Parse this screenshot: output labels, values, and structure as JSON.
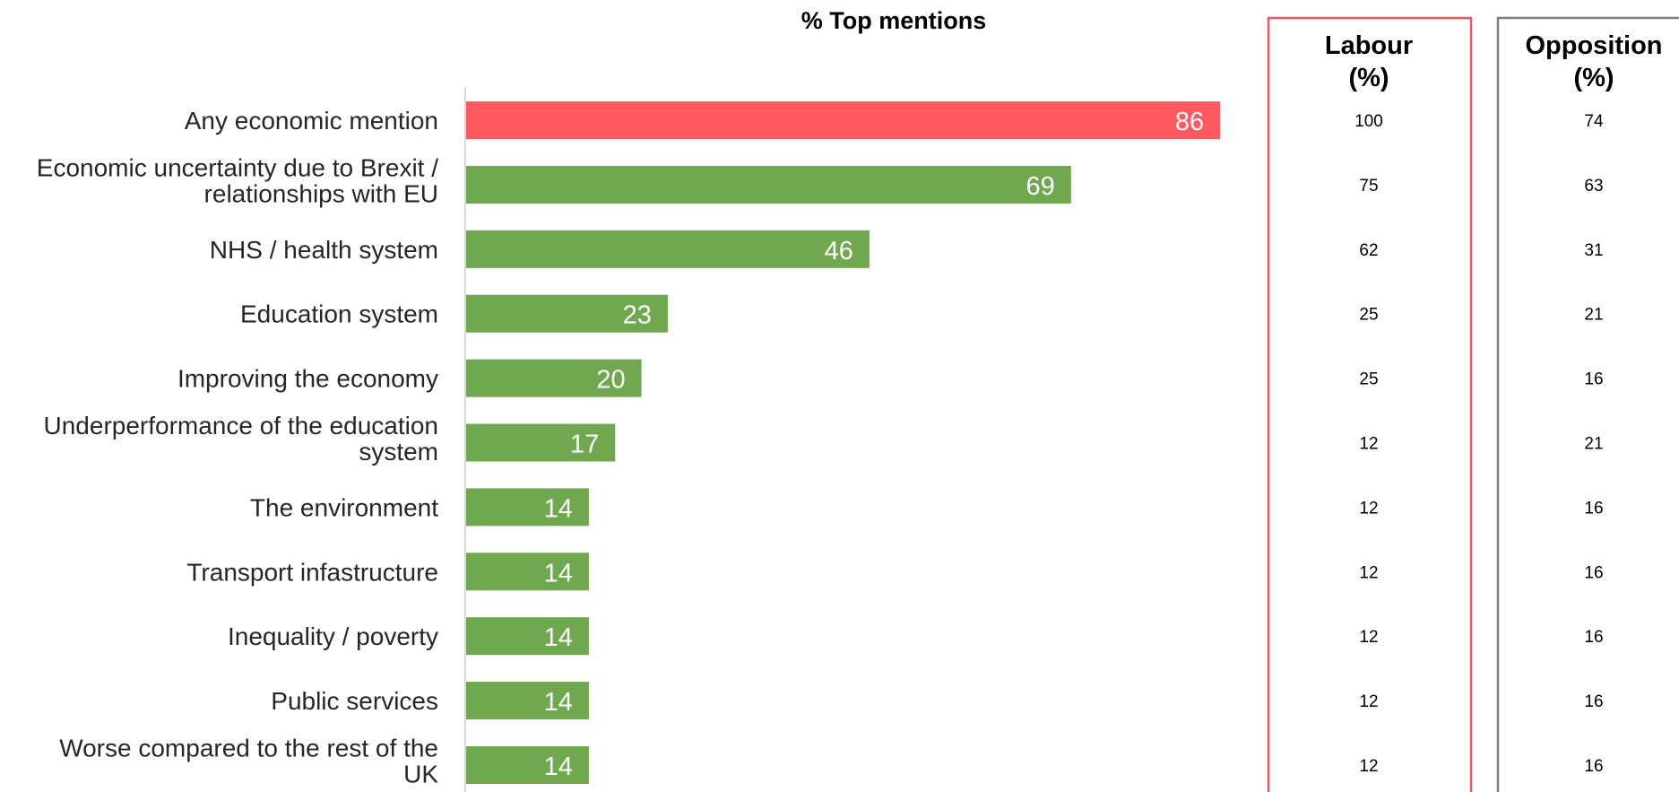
{
  "chart_data": {
    "type": "bar",
    "orientation": "horizontal",
    "title": "% Top mentions",
    "xlim": [
      0,
      100
    ],
    "categories": [
      "Any economic mention",
      "Economic uncertainty due to Brexit / relationships with EU",
      "NHS / health system",
      "Education system",
      "Improving the economy",
      "Underperformance of the education system",
      "The environment",
      "Transport infastructure",
      "Inequality / poverty",
      "Public services",
      "Worse compared to the rest of the UK"
    ],
    "category_lines": [
      [
        "Any economic mention"
      ],
      [
        "Economic uncertainty due to Brexit /",
        "relationships with EU"
      ],
      [
        "NHS / health system"
      ],
      [
        "Education system"
      ],
      [
        "Improving the economy"
      ],
      [
        "Underperformance of the education",
        "system"
      ],
      [
        "The environment"
      ],
      [
        "Transport infastructure"
      ],
      [
        "Inequality / poverty"
      ],
      [
        "Public services"
      ],
      [
        "Worse compared to the rest of the",
        "UK"
      ]
    ],
    "values": [
      86,
      69,
      46,
      23,
      20,
      17,
      14,
      14,
      14,
      14,
      14
    ],
    "bar_colors": [
      "#ff5a5f",
      "#70a84f",
      "#70a84f",
      "#70a84f",
      "#70a84f",
      "#70a84f",
      "#70a84f",
      "#70a84f",
      "#70a84f",
      "#70a84f",
      "#70a84f"
    ],
    "columns": [
      {
        "header_lines": [
          "Labour",
          "(%)"
        ],
        "border_color": "#f0555a",
        "values": [
          100,
          75,
          62,
          25,
          25,
          12,
          12,
          12,
          12,
          12,
          12
        ]
      },
      {
        "header_lines": [
          "Opposition",
          "(%)"
        ],
        "border_color": "#7f7f7f",
        "values": [
          74,
          63,
          31,
          21,
          16,
          21,
          16,
          16,
          16,
          16,
          16
        ]
      }
    ],
    "grid": false,
    "legend": "none"
  }
}
